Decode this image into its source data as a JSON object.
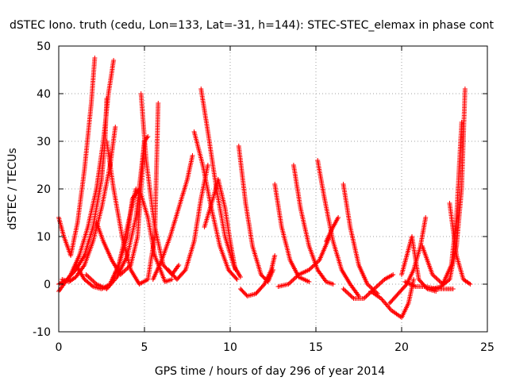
{
  "chart_data": {
    "type": "scatter",
    "title": "dSTEC Iono. truth (cedu, Lon=133, Lat=-31, h=144): STEC-STEC_elemax in phase cont",
    "xlabel": "GPS time / hours of day 296 of year 2014",
    "ylabel": "dSTEC  / TECUs",
    "xlim": [
      0,
      25
    ],
    "ylim": [
      -10,
      50
    ],
    "x_ticks": [
      "0",
      "5",
      "10",
      "15",
      "20",
      "25"
    ],
    "y_ticks": [
      "-10",
      "0",
      "10",
      "20",
      "30",
      "40",
      "50"
    ],
    "grid": true,
    "marker": "+",
    "color": "#ff0000",
    "series": [
      {
        "x": [
          0.0,
          0.3,
          0.7,
          1.1,
          1.5,
          1.9,
          2.1
        ],
        "y": [
          14,
          10,
          6,
          13,
          24,
          38,
          47.5
        ]
      },
      {
        "x": [
          0.0,
          0.3,
          0.7,
          1.2,
          1.7,
          2.2,
          2.6,
          2.9,
          3.2
        ],
        "y": [
          -1.5,
          0,
          2,
          6,
          12,
          20,
          30,
          40,
          47
        ]
      },
      {
        "x": [
          0.0,
          0.5,
          1.0,
          1.5,
          2.0,
          2.5,
          2.7,
          2.8
        ],
        "y": [
          0,
          1,
          3,
          6,
          12,
          22,
          30,
          39
        ]
      },
      {
        "x": [
          0.2,
          0.6,
          1.0,
          1.5,
          2.0,
          2.5,
          3.0,
          3.3
        ],
        "y": [
          1,
          0.5,
          1.5,
          4,
          9,
          16,
          25,
          33
        ]
      },
      {
        "x": [
          1.0,
          1.5,
          2.0,
          2.5,
          3.0,
          3.5,
          4.0,
          4.5
        ],
        "y": [
          4,
          1,
          -0.5,
          -1,
          0,
          4,
          12,
          20
        ]
      },
      {
        "x": [
          1.6,
          2.2,
          2.8,
          3.4,
          4.0,
          4.5,
          5.0
        ],
        "y": [
          2,
          0,
          -1,
          1.5,
          6,
          14,
          30
        ]
      },
      {
        "x": [
          2.2,
          2.6,
          3.1,
          3.6,
          4.2,
          4.6,
          4.8,
          5.0,
          5.2
        ],
        "y": [
          13,
          9,
          5,
          2,
          4,
          10,
          20,
          30,
          31
        ]
      },
      {
        "x": [
          2.8,
          3.2,
          3.7,
          4.2,
          4.7,
          5.2,
          5.6,
          5.8
        ],
        "y": [
          30,
          20,
          10,
          3,
          0,
          1,
          10,
          38
        ]
      },
      {
        "x": [
          3.0,
          3.5,
          4.0,
          4.3,
          4.7,
          5.2,
          5.6,
          6.2,
          6.6
        ],
        "y": [
          0,
          4,
          10,
          18,
          20,
          14,
          6,
          0.5,
          1
        ]
      },
      {
        "x": [
          4.8,
          5.1,
          5.6,
          6.1,
          6.6,
          7.0
        ],
        "y": [
          40,
          26,
          12,
          4,
          2,
          4
        ]
      },
      {
        "x": [
          6.4,
          6.9,
          7.4,
          7.9,
          8.3,
          8.7
        ],
        "y": [
          3,
          1,
          3,
          9,
          18,
          25
        ]
      },
      {
        "x": [
          5.5,
          6.0,
          6.5,
          7.0,
          7.5,
          7.8
        ],
        "y": [
          1,
          5,
          10,
          16,
          22,
          27
        ]
      },
      {
        "x": [
          8.3,
          8.7,
          9.2,
          9.7,
          10.2,
          10.6
        ],
        "y": [
          41,
          32,
          20,
          10,
          4,
          1.5
        ]
      },
      {
        "x": [
          7.9,
          8.4,
          8.9,
          9.4,
          9.9,
          10.4
        ],
        "y": [
          32,
          25,
          16,
          8,
          3,
          1
        ]
      },
      {
        "x": [
          8.5,
          9.0,
          9.3,
          9.7,
          10.0,
          10.3
        ],
        "y": [
          12,
          18,
          22,
          16,
          9,
          3
        ]
      },
      {
        "x": [
          10.5,
          10.9,
          11.3,
          11.8,
          12.2,
          12.5
        ],
        "y": [
          29,
          17,
          8,
          2,
          0.5,
          3
        ]
      },
      {
        "x": [
          10.6,
          11.0,
          11.5,
          12.0,
          12.4,
          12.6
        ],
        "y": [
          -1,
          -2.5,
          -2,
          0,
          3,
          6
        ]
      },
      {
        "x": [
          12.6,
          13.0,
          13.5,
          14.0,
          14.6
        ],
        "y": [
          21,
          12,
          5,
          1.5,
          0.5
        ]
      },
      {
        "x": [
          13.7,
          14.1,
          14.6,
          15.1,
          15.6,
          16.0
        ],
        "y": [
          25,
          16,
          8,
          3,
          0.5,
          0
        ]
      },
      {
        "x": [
          12.8,
          13.4,
          14.0,
          14.6,
          15.2,
          15.8
        ],
        "y": [
          -0.5,
          0,
          2,
          3,
          5,
          10
        ]
      },
      {
        "x": [
          15.1,
          15.5,
          16.0,
          16.5,
          17.0,
          17.5
        ],
        "y": [
          26,
          18,
          9,
          3,
          0,
          -2.5
        ]
      },
      {
        "x": [
          15.6,
          16.0,
          16.3
        ],
        "y": [
          9,
          12,
          14
        ]
      },
      {
        "x": [
          16.6,
          17.0,
          17.5,
          18.0,
          18.6
        ],
        "y": [
          21,
          12,
          4,
          0,
          -2
        ]
      },
      {
        "x": [
          16.6,
          17.2,
          17.8,
          18.4,
          19.0,
          19.5
        ],
        "y": [
          -1,
          -3,
          -3,
          -1,
          1,
          2
        ]
      },
      {
        "x": [
          18.2,
          18.8,
          19.4,
          20.0,
          20.4,
          20.7
        ],
        "y": [
          -1.5,
          -3,
          -5.5,
          -7,
          -4,
          1
        ]
      },
      {
        "x": [
          19.3,
          19.8,
          20.3,
          20.7,
          21.1,
          21.4
        ],
        "y": [
          -4,
          -2,
          0,
          3,
          8,
          14
        ]
      },
      {
        "x": [
          20.0,
          20.3,
          20.6,
          21.0,
          21.5,
          22.0
        ],
        "y": [
          2,
          6,
          10,
          1,
          -1,
          -1.5
        ]
      },
      {
        "x": [
          20.2,
          20.8,
          21.4,
          22.0,
          22.6,
          23.0
        ],
        "y": [
          0.5,
          -0.5,
          -0.5,
          -1,
          -1,
          -1
        ]
      },
      {
        "x": [
          21.2,
          21.8,
          22.4,
          22.9,
          23.2,
          23.5
        ],
        "y": [
          8,
          2,
          0,
          4,
          14,
          34
        ]
      },
      {
        "x": [
          21.8,
          22.3,
          22.8,
          23.2,
          23.5,
          23.7
        ],
        "y": [
          -1,
          -0.5,
          1,
          8,
          20,
          41
        ]
      },
      {
        "x": [
          22.8,
          23.2,
          23.6,
          24.0
        ],
        "y": [
          17,
          6,
          1,
          0
        ]
      }
    ]
  }
}
